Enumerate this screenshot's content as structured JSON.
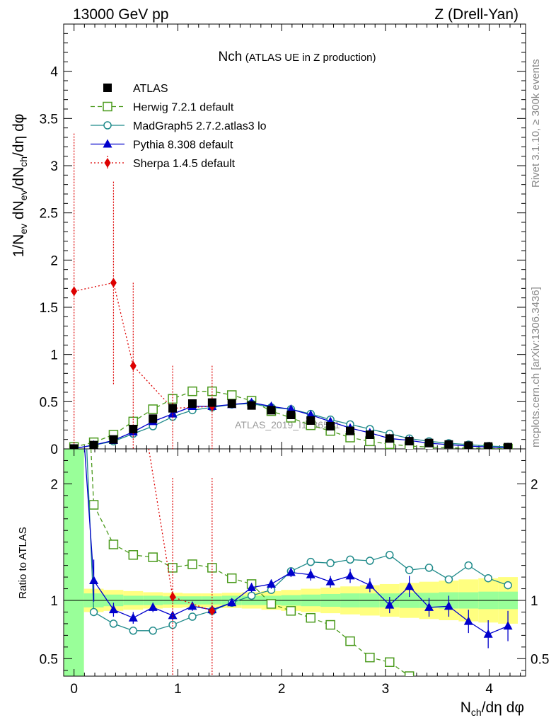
{
  "header": {
    "left": "13000 GeV pp",
    "right": "Z (Drell-Yan)"
  },
  "side_text": {
    "rivet": "Rivet 3.1.10, ≥ 300k events",
    "mcplots": "mcplots.cern.ch [arXiv:1306.3436]"
  },
  "chart_data": {
    "type": "line",
    "title_main": "Nch",
    "title_sub": "(ATLAS UE in Z production)",
    "watermark": "ATLAS_2019_I1736531",
    "xlabel": "N_ch/dη dφ",
    "ylabel": "1/N_ev dN_ev/dN_ch/dη dφ",
    "ratio_ylabel": "Ratio to ATLAS",
    "xlim": [
      -0.1,
      4.35
    ],
    "ylim": [
      0,
      4.5
    ],
    "ratio_ylim": [
      0.35,
      2.3
    ],
    "x_ticks": [
      "0",
      "1",
      "2",
      "3",
      "4"
    ],
    "y_ticks": [
      "0",
      "0.5",
      "1",
      "1.5",
      "2",
      "2.5",
      "3",
      "3.5",
      "4"
    ],
    "ratio_ticks": [
      "0.5",
      "1",
      "2"
    ],
    "x": [
      0.0,
      0.19,
      0.38,
      0.57,
      0.76,
      0.95,
      1.14,
      1.33,
      1.52,
      1.71,
      1.9,
      2.09,
      2.28,
      2.47,
      2.66,
      2.85,
      3.04,
      3.23,
      3.42,
      3.61,
      3.8,
      3.99,
      4.18
    ],
    "series": [
      {
        "name": "ATLAS",
        "color": "#000000",
        "marker": "square-filled",
        "values": [
          0.004,
          0.04,
          0.1,
          0.21,
          0.32,
          0.43,
          0.48,
          0.49,
          0.48,
          0.46,
          0.41,
          0.36,
          0.3,
          0.24,
          0.19,
          0.15,
          0.11,
          0.082,
          0.062,
          0.046,
          0.034,
          0.025,
          0.018
        ]
      },
      {
        "name": "Herwig 7.2.1 default",
        "color": "#4a9a1c",
        "marker": "square-open",
        "dash": "6,4",
        "values": [
          0.02,
          0.07,
          0.15,
          0.29,
          0.42,
          0.53,
          0.61,
          0.61,
          0.57,
          0.51,
          0.4,
          0.33,
          0.25,
          0.19,
          0.12,
          0.08,
          0.05,
          0.03,
          0.02,
          0.01,
          0.01,
          0.005,
          0.003
        ],
        "ratio": [
          null,
          1.82,
          1.48,
          1.39,
          1.37,
          1.28,
          1.31,
          1.28,
          1.19,
          1.14,
          0.97,
          0.91,
          0.85,
          0.79,
          0.65,
          0.51,
          0.47,
          0.34,
          null,
          null,
          null,
          null,
          null
        ]
      },
      {
        "name": "MadGraph5 2.7.2.atlas3 lo",
        "color": "#1f8a8a",
        "marker": "circle-open",
        "values": [
          0.004,
          0.04,
          0.08,
          0.16,
          0.24,
          0.34,
          0.41,
          0.44,
          0.47,
          0.48,
          0.44,
          0.42,
          0.37,
          0.31,
          0.26,
          0.21,
          0.16,
          0.11,
          0.08,
          0.06,
          0.045,
          0.03,
          0.022
        ],
        "ratio": [
          null,
          0.9,
          0.8,
          0.74,
          0.74,
          0.79,
          0.86,
          0.91,
          0.98,
          1.04,
          1.09,
          1.25,
          1.33,
          1.32,
          1.35,
          1.34,
          1.39,
          1.26,
          1.28,
          1.18,
          1.3,
          1.19,
          1.13
        ]
      },
      {
        "name": "Pythia 8.308 default",
        "color": "#0000cc",
        "marker": "triangle-filled",
        "values": [
          0.004,
          0.04,
          0.09,
          0.18,
          0.29,
          0.37,
          0.45,
          0.45,
          0.47,
          0.49,
          0.45,
          0.42,
          0.36,
          0.29,
          0.22,
          0.17,
          0.11,
          0.09,
          0.06,
          0.045,
          0.03,
          0.02,
          0.014
        ],
        "ratio": [
          null,
          1.17,
          0.92,
          0.85,
          0.94,
          0.87,
          0.95,
          0.92,
          0.98,
          1.11,
          1.14,
          1.24,
          1.22,
          1.16,
          1.21,
          1.13,
          0.96,
          1.12,
          0.94,
          0.95,
          0.82,
          0.71,
          0.78
        ],
        "ratio_err": [
          null,
          0.18,
          0.06,
          0.05,
          0.04,
          0.04,
          0.04,
          0.03,
          0.03,
          0.04,
          0.04,
          0.04,
          0.05,
          0.05,
          0.06,
          0.06,
          0.07,
          0.09,
          0.08,
          0.09,
          0.1,
          0.12,
          0.13
        ]
      },
      {
        "name": "Sherpa 1.4.5 default",
        "color": "#dd0000",
        "marker": "diamond-filled",
        "dash": "2,3",
        "x": [
          0.0,
          0.38,
          0.57,
          0.95,
          1.33
        ],
        "values": [
          1.67,
          1.76,
          0.88,
          0.43,
          0.45
        ],
        "err_lo": [
          0.0,
          0.68,
          0.0,
          0.0,
          0.0
        ],
        "err_hi": [
          3.34,
          2.83,
          1.76,
          0.88,
          0.88
        ],
        "ratio": [
          null,
          null,
          null,
          1.03,
          0.91
        ]
      }
    ],
    "ratio_band_inner": [
      9.0,
      0.06,
      0.05,
      0.04,
      0.04,
      0.035,
      0.035,
      0.035,
      0.04,
      0.04,
      0.04,
      0.045,
      0.05,
      0.055,
      0.06,
      0.06,
      0.06,
      0.065,
      0.065,
      0.07,
      0.07,
      0.075,
      0.075
    ],
    "ratio_band_outer": [
      9.0,
      0.1,
      0.09,
      0.08,
      0.07,
      0.065,
      0.06,
      0.06,
      0.065,
      0.07,
      0.08,
      0.09,
      0.1,
      0.11,
      0.12,
      0.13,
      0.14,
      0.15,
      0.16,
      0.17,
      0.18,
      0.19,
      0.2
    ]
  }
}
